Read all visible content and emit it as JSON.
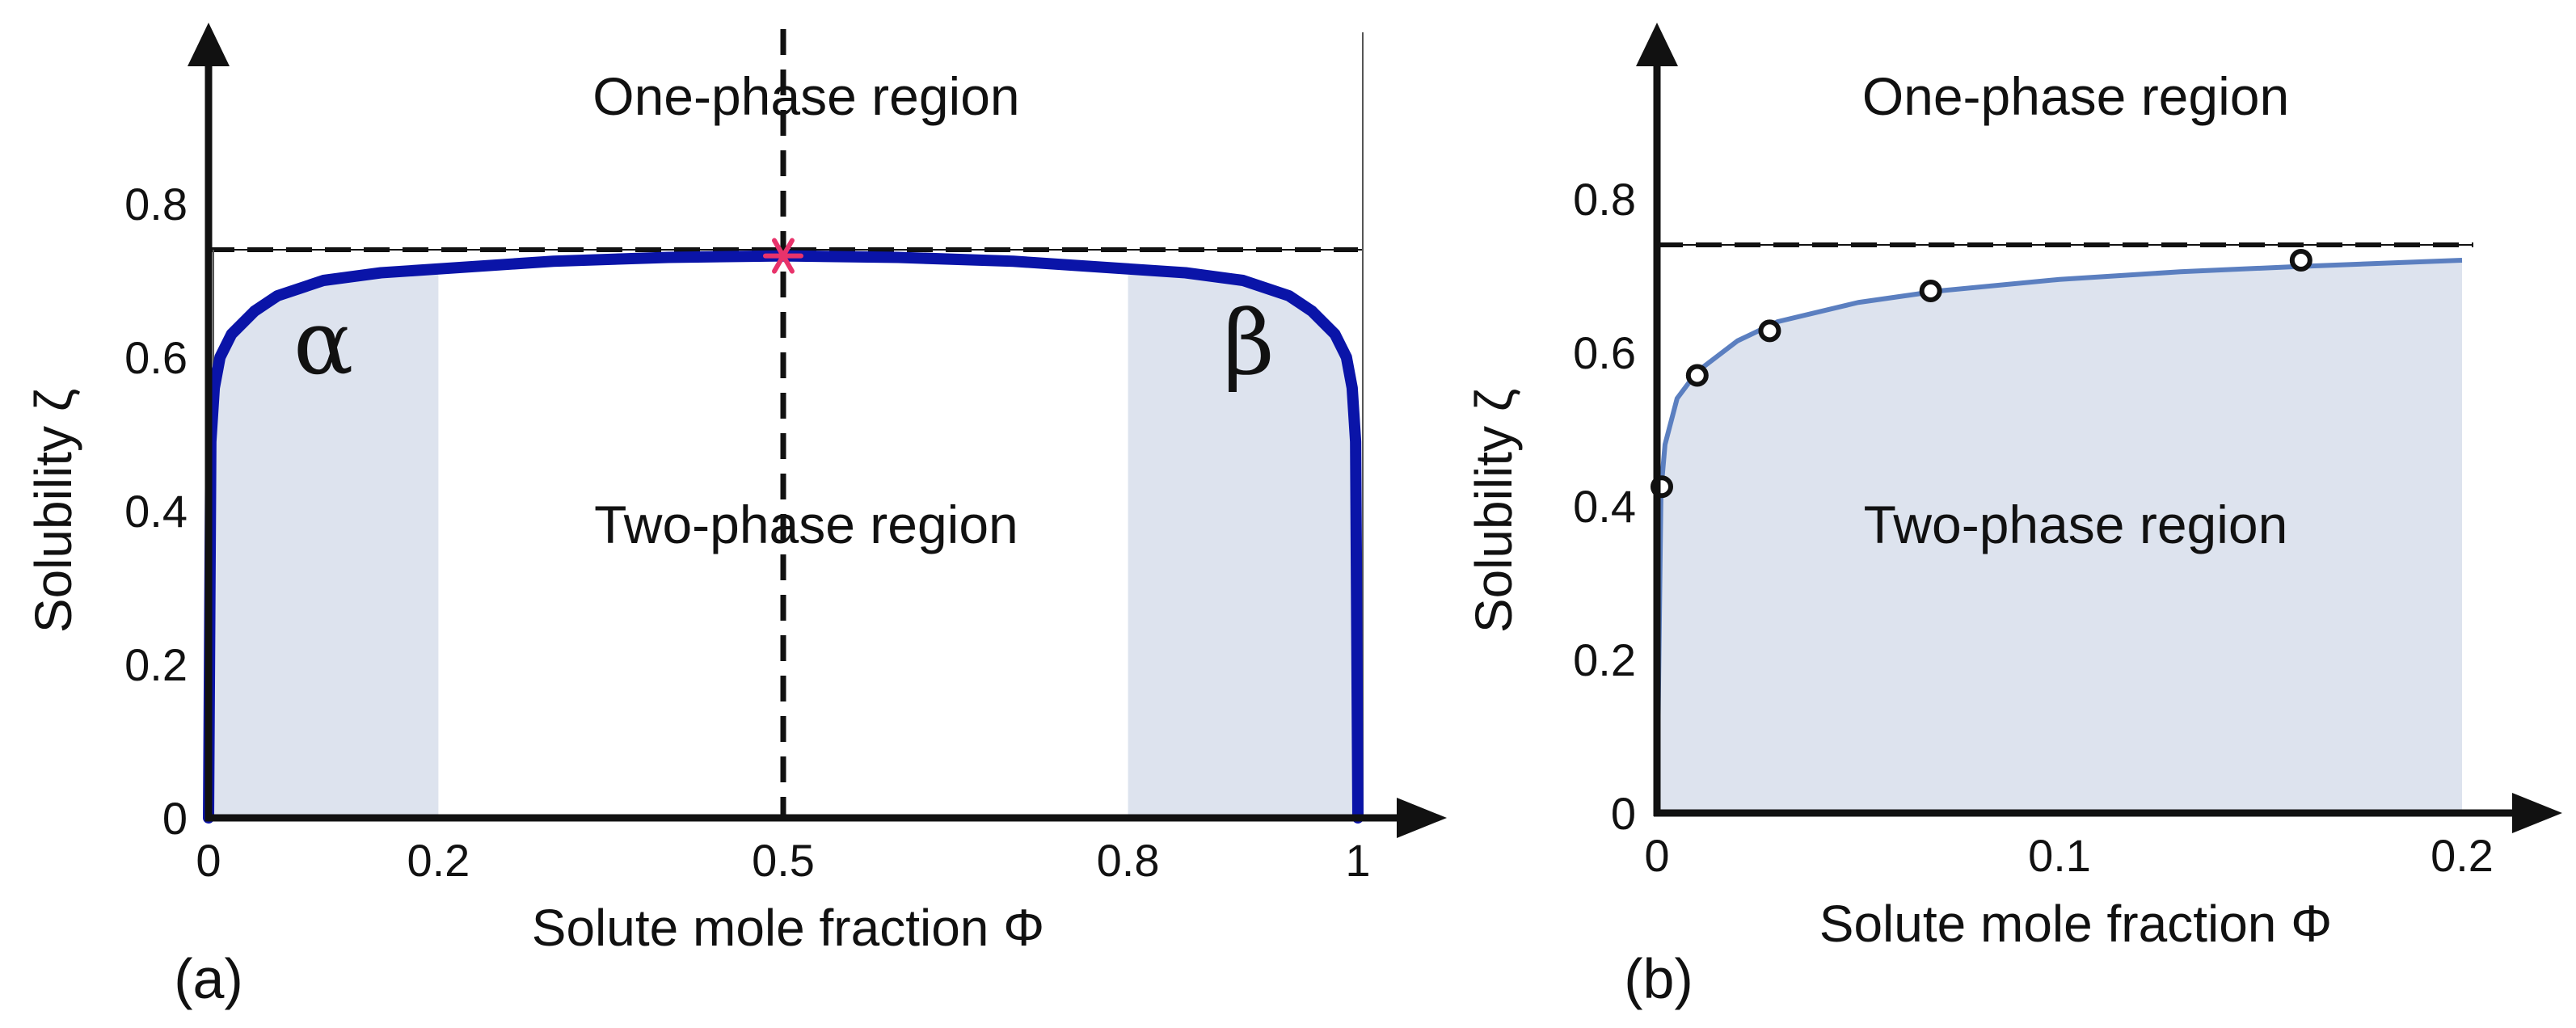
{
  "chart_data": [
    {
      "type": "line",
      "panel_label": "(a)",
      "xlabel": "Solute mole fraction Φ",
      "ylabel": "Solubility ζ",
      "xlim": [
        0,
        1
      ],
      "ylim": [
        0,
        0.8
      ],
      "x_ticks": [
        "0",
        "0.2",
        "0.5",
        "0.8",
        "1"
      ],
      "x_tick_values": [
        0,
        0.2,
        0.5,
        0.8,
        1
      ],
      "y_ticks": [
        "0",
        "0.2",
        "0.4",
        "0.6",
        "0.8"
      ],
      "y_tick_values": [
        0,
        0.2,
        0.4,
        0.6,
        0.8
      ],
      "region_labels": {
        "upper": "One-phase region",
        "lower": "Two-phase region"
      },
      "phase_labels": {
        "left": "α",
        "right": "β"
      },
      "series": [
        {
          "color": "#0a14a8",
          "x": [
            0,
            0.002,
            0.005,
            0.01,
            0.02,
            0.04,
            0.06,
            0.1,
            0.15,
            0.2,
            0.3,
            0.4,
            0.5,
            0.6,
            0.7,
            0.8,
            0.85,
            0.9,
            0.94,
            0.96,
            0.98,
            0.99,
            0.995,
            0.998,
            1
          ],
          "y": [
            0,
            0.49,
            0.56,
            0.6,
            0.63,
            0.66,
            0.68,
            0.7,
            0.71,
            0.715,
            0.725,
            0.73,
            0.732,
            0.73,
            0.725,
            0.715,
            0.71,
            0.7,
            0.68,
            0.66,
            0.63,
            0.6,
            0.56,
            0.49,
            0
          ]
        }
      ],
      "shaded_ranges": [
        [
          0,
          0.2
        ],
        [
          0.8,
          1
        ]
      ],
      "shade_color": "#dde3ee",
      "horizontal_dashed_line": 0.74,
      "vertical_dashed_line": 0.5,
      "marker": {
        "x": 0.5,
        "y": 0.732,
        "symbol": "asterisk",
        "color": "#e8336b"
      }
    },
    {
      "type": "line",
      "panel_label": "(b)",
      "xlabel": "Solute mole fraction Φ",
      "ylabel": "Solubility ζ",
      "xlim": [
        0,
        0.2
      ],
      "ylim": [
        0,
        0.8
      ],
      "x_ticks": [
        "0",
        "0.1",
        "0.2"
      ],
      "x_tick_values": [
        0,
        0.1,
        0.2
      ],
      "y_ticks": [
        "0",
        "0.2",
        "0.4",
        "0.6",
        "0.8"
      ],
      "y_tick_values": [
        0,
        0.2,
        0.4,
        0.6,
        0.8
      ],
      "region_labels": {
        "upper": "One-phase region",
        "lower": "Two-phase region"
      },
      "series": [
        {
          "color": "#5b7fc0",
          "x": [
            0,
            0.001,
            0.002,
            0.005,
            0.01,
            0.02,
            0.03,
            0.05,
            0.07,
            0.1,
            0.13,
            0.16,
            0.2
          ],
          "y": [
            0,
            0.42,
            0.48,
            0.54,
            0.575,
            0.615,
            0.64,
            0.665,
            0.68,
            0.695,
            0.705,
            0.712,
            0.72
          ]
        }
      ],
      "points": {
        "x": [
          0,
          0.01,
          0.028,
          0.068,
          0.16
        ],
        "y": [
          0.425,
          0.57,
          0.628,
          0.68,
          0.72
        ]
      },
      "shade_color": "#dde3ee",
      "horizontal_dashed_line": 0.74
    }
  ]
}
